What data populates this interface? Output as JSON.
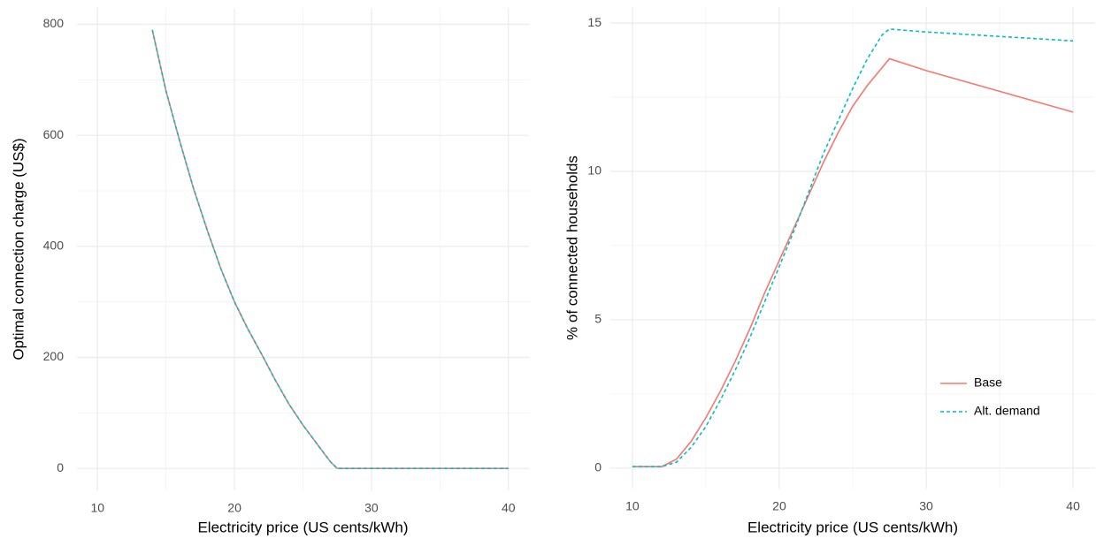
{
  "chart_data": [
    {
      "type": "line",
      "xlabel": "Electricity price (US cents/kWh)",
      "ylabel": "Optimal connection charge (US$)",
      "x": [
        14,
        15,
        16,
        17,
        18,
        19,
        20,
        21,
        22,
        23,
        24,
        25,
        26,
        27,
        27.5,
        30,
        35,
        40
      ],
      "series": [
        {
          "color": "#F8766D",
          "dash": false,
          "values": [
            790,
            680,
            590,
            505,
            430,
            360,
            300,
            250,
            205,
            158,
            115,
            78,
            45,
            12,
            0,
            0,
            0,
            0
          ]
        },
        {
          "color": "#00BFC4",
          "dash": true,
          "values": [
            790,
            680,
            590,
            505,
            430,
            360,
            300,
            250,
            205,
            158,
            115,
            78,
            45,
            12,
            0,
            0,
            0,
            0
          ]
        }
      ],
      "xlim": [
        8.5,
        41.5
      ],
      "xticks": [
        10,
        20,
        30,
        40
      ],
      "ylim": [
        -39.5,
        829.5
      ],
      "yticks": [
        0,
        200,
        400,
        600,
        800
      ],
      "grid": true
    },
    {
      "type": "line",
      "xlabel": "Electricity price (US cents/kWh)",
      "ylabel": "% of connected households",
      "x": [
        10,
        12,
        13,
        14,
        15,
        16,
        17,
        18,
        19,
        20,
        21,
        22,
        23,
        24,
        25,
        26,
        27,
        27.5,
        30,
        35,
        40
      ],
      "series": [
        {
          "name": "Base",
          "color": "#F8766D",
          "dash": false,
          "values": [
            0.05,
            0.05,
            0.3,
            0.9,
            1.7,
            2.6,
            3.6,
            4.7,
            5.9,
            7.0,
            8.1,
            9.2,
            10.3,
            11.3,
            12.2,
            12.9,
            13.5,
            13.8,
            13.4,
            12.7,
            12.0
          ]
        },
        {
          "name": "Alt. demand",
          "color": "#00BFC4",
          "dash": true,
          "values": [
            0.05,
            0.05,
            0.2,
            0.7,
            1.4,
            2.3,
            3.3,
            4.4,
            5.6,
            6.8,
            8.0,
            9.3,
            10.6,
            11.7,
            12.8,
            13.8,
            14.6,
            14.8,
            14.7,
            14.55,
            14.4
          ]
        }
      ],
      "xlim": [
        8.5,
        41.5
      ],
      "xticks": [
        10,
        20,
        30,
        40
      ],
      "ylim": [
        -0.69,
        15.54
      ],
      "yticks": [
        0,
        5,
        10,
        15
      ],
      "grid": true,
      "legend": "right"
    }
  ]
}
